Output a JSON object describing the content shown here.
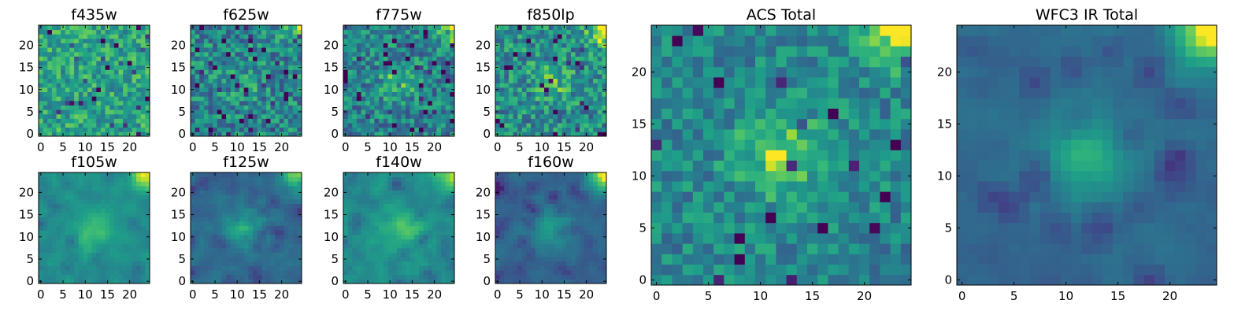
{
  "figure": {
    "layout": "2 rows x 4 small panels plus 2 large panels"
  },
  "chart_data": [
    {
      "type": "heatmap",
      "title": "f435w",
      "grid_size": 25,
      "xticks": [
        "0",
        "5",
        "10",
        "15",
        "20"
      ],
      "yticks": [
        "0",
        "5",
        "10",
        "15",
        "20"
      ],
      "colormap": "viridis",
      "pattern": "noise",
      "bright_corner": 0.0,
      "center": 0.0,
      "base": 0.66,
      "noise": 0.22,
      "dark_fraction": 0.03,
      "seed": 11
    },
    {
      "type": "heatmap",
      "title": "f625w",
      "grid_size": 25,
      "xticks": [
        "0",
        "5",
        "10",
        "15",
        "20"
      ],
      "yticks": [
        "0",
        "5",
        "10",
        "15",
        "20"
      ],
      "colormap": "viridis",
      "pattern": "noise",
      "bright_corner": 0.35,
      "center": 0.1,
      "base": 0.52,
      "noise": 0.25,
      "dark_fraction": 0.06,
      "seed": 23
    },
    {
      "type": "heatmap",
      "title": "f775w",
      "grid_size": 25,
      "xticks": [
        "0",
        "5",
        "10",
        "15",
        "20"
      ],
      "yticks": [
        "0",
        "5",
        "10",
        "15",
        "20"
      ],
      "colormap": "viridis",
      "pattern": "noise",
      "bright_corner": 0.55,
      "center": 0.25,
      "base": 0.5,
      "noise": 0.24,
      "dark_fraction": 0.05,
      "seed": 37
    },
    {
      "type": "heatmap",
      "title": "f850lp",
      "grid_size": 25,
      "xticks": [
        "0",
        "5",
        "10",
        "15",
        "20"
      ],
      "yticks": [
        "0",
        "5",
        "10",
        "15",
        "20"
      ],
      "colormap": "viridis",
      "pattern": "noise",
      "bright_corner": 0.55,
      "center": 0.2,
      "base": 0.55,
      "noise": 0.25,
      "dark_fraction": 0.05,
      "seed": 41
    },
    {
      "type": "heatmap",
      "title": "f105w",
      "grid_size": 25,
      "xticks": [
        "0",
        "5",
        "10",
        "15",
        "20"
      ],
      "yticks": [
        "0",
        "5",
        "10",
        "15",
        "20"
      ],
      "colormap": "viridis",
      "pattern": "smooth",
      "bright_corner": 0.5,
      "center": 0.25,
      "base": 0.55,
      "noise": 0.16,
      "dark_fraction": 0.01,
      "seed": 53
    },
    {
      "type": "heatmap",
      "title": "f125w",
      "grid_size": 25,
      "xticks": [
        "0",
        "5",
        "10",
        "15",
        "20"
      ],
      "yticks": [
        "0",
        "5",
        "10",
        "15",
        "20"
      ],
      "colormap": "viridis",
      "pattern": "smooth",
      "bright_corner": 0.6,
      "center": 0.35,
      "base": 0.38,
      "noise": 0.16,
      "dark_fraction": 0.03,
      "seed": 67
    },
    {
      "type": "heatmap",
      "title": "f140w",
      "grid_size": 25,
      "xticks": [
        "0",
        "5",
        "10",
        "15",
        "20"
      ],
      "yticks": [
        "0",
        "5",
        "10",
        "15",
        "20"
      ],
      "colormap": "viridis",
      "pattern": "smooth",
      "bright_corner": 0.45,
      "center": 0.3,
      "base": 0.55,
      "noise": 0.18,
      "dark_fraction": 0.03,
      "seed": 71
    },
    {
      "type": "heatmap",
      "title": "f160w",
      "grid_size": 25,
      "xticks": [
        "0",
        "5",
        "10",
        "15",
        "20"
      ],
      "yticks": [
        "0",
        "5",
        "10",
        "15",
        "20"
      ],
      "colormap": "viridis",
      "pattern": "smooth",
      "bright_corner": 0.7,
      "center": 0.3,
      "base": 0.36,
      "noise": 0.14,
      "dark_fraction": 0.03,
      "seed": 83
    },
    {
      "type": "heatmap",
      "title": "ACS Total",
      "grid_size": 25,
      "xticks": [
        "0",
        "5",
        "10",
        "15",
        "20"
      ],
      "yticks": [
        "0",
        "5",
        "10",
        "15",
        "20"
      ],
      "colormap": "viridis",
      "pattern": "noise",
      "bright_corner": 0.55,
      "center": 0.35,
      "base": 0.52,
      "noise": 0.18,
      "dark_fraction": 0.03,
      "seed": 97
    },
    {
      "type": "heatmap",
      "title": "WFC3 IR Total",
      "grid_size": 25,
      "xticks": [
        "0",
        "5",
        "10",
        "15",
        "20"
      ],
      "yticks": [
        "0",
        "5",
        "10",
        "15",
        "20"
      ],
      "colormap": "viridis",
      "pattern": "smooth",
      "bright_corner": 0.7,
      "center": 0.35,
      "base": 0.38,
      "noise": 0.12,
      "dark_fraction": 0.03,
      "seed": 101
    }
  ]
}
